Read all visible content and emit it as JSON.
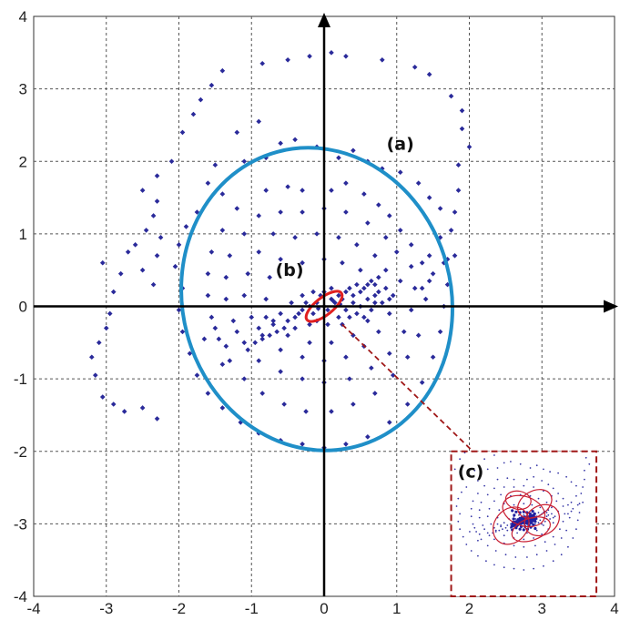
{
  "chart_data": {
    "type": "scatter",
    "title": "",
    "xlabel": "",
    "ylabel": "",
    "xlim": [
      -4,
      4
    ],
    "ylim": [
      -4,
      4
    ],
    "xticks": [
      -4,
      -3,
      -2,
      -1,
      0,
      1,
      2,
      3,
      4
    ],
    "yticks": [
      -4,
      -3,
      -2,
      -1,
      0,
      1,
      2,
      3,
      4
    ],
    "grid": true,
    "grid_style": "dashed",
    "annotations": [
      "(a)",
      "(b)",
      "(c)"
    ],
    "ellipses": {
      "a": {
        "label": "(a)",
        "center": [
          -0.1,
          0.1
        ],
        "rx": 1.85,
        "ry": 2.1,
        "rotation_deg": 15,
        "color": "#1f8fc8"
      },
      "b": {
        "label": "(b)",
        "center": [
          0.0,
          0.0
        ],
        "rx": 0.3,
        "ry": 0.12,
        "rotation_deg": 38,
        "color": "#e02020"
      }
    },
    "inset": {
      "label": "(c)",
      "x_range": [
        1.75,
        3.75
      ],
      "y_range": [
        -4.0,
        -2.0
      ],
      "border_color": "#a01818"
    },
    "point_color": "#2a2a9a",
    "series": [
      {
        "points": [
          [
            0.1,
            3.5
          ],
          [
            -0.2,
            3.45
          ],
          [
            0.3,
            3.45
          ],
          [
            -0.5,
            3.4
          ],
          [
            0.8,
            3.4
          ],
          [
            -0.85,
            3.35
          ],
          [
            1.25,
            3.3
          ],
          [
            -1.4,
            3.25
          ],
          [
            1.45,
            3.2
          ],
          [
            -1.55,
            3.05
          ],
          [
            1.75,
            2.9
          ],
          [
            -1.7,
            2.85
          ],
          [
            1.9,
            2.7
          ],
          [
            -1.8,
            2.65
          ],
          [
            1.9,
            2.45
          ],
          [
            -1.95,
            2.4
          ],
          [
            2.0,
            2.2
          ],
          [
            -2.1,
            2.0
          ],
          [
            1.85,
            1.95
          ],
          [
            -2.3,
            1.8
          ],
          [
            1.85,
            1.6
          ],
          [
            -2.5,
            1.6
          ],
          [
            1.8,
            1.3
          ],
          [
            -2.3,
            1.45
          ],
          [
            1.75,
            1.05
          ],
          [
            -2.35,
            1.25
          ],
          [
            -2.45,
            1.05
          ],
          [
            -2.25,
            0.95
          ],
          [
            -2.6,
            0.85
          ],
          [
            -2.3,
            0.7
          ],
          [
            -2.5,
            0.5
          ],
          [
            -2.35,
            0.3
          ],
          [
            -2.8,
            0.45
          ],
          [
            -2.9,
            0.2
          ],
          [
            -2.95,
            -0.1
          ],
          [
            -3.0,
            -0.3
          ],
          [
            -3.1,
            -0.5
          ],
          [
            -3.2,
            -0.7
          ],
          [
            -3.15,
            -0.95
          ],
          [
            -3.05,
            -1.25
          ],
          [
            -2.9,
            -1.35
          ],
          [
            -2.75,
            -1.45
          ],
          [
            -2.5,
            -1.4
          ],
          [
            -2.3,
            -1.55
          ],
          [
            -3.05,
            0.6
          ],
          [
            -2.7,
            0.75
          ],
          [
            -1.2,
            2.4
          ],
          [
            -0.9,
            2.55
          ],
          [
            -0.6,
            2.25
          ],
          [
            -0.4,
            2.3
          ],
          [
            -1.5,
            1.95
          ],
          [
            -1.1,
            2.0
          ],
          [
            -0.8,
            2.05
          ],
          [
            -0.1,
            2.2
          ],
          [
            0.2,
            2.05
          ],
          [
            0.4,
            2.15
          ],
          [
            0.6,
            2.0
          ],
          [
            0.8,
            1.9
          ],
          [
            1.05,
            1.85
          ],
          [
            1.3,
            1.7
          ],
          [
            1.45,
            1.5
          ],
          [
            1.6,
            1.35
          ],
          [
            -1.6,
            1.7
          ],
          [
            -1.4,
            1.55
          ],
          [
            -1.75,
            1.3
          ],
          [
            -1.9,
            1.1
          ],
          [
            -2.0,
            0.85
          ],
          [
            -2.05,
            0.55
          ],
          [
            -1.95,
            0.25
          ],
          [
            -2.0,
            -0.05
          ],
          [
            -1.95,
            -0.35
          ],
          [
            -1.85,
            -0.65
          ],
          [
            -1.75,
            -0.95
          ],
          [
            -1.6,
            -1.2
          ],
          [
            -1.4,
            -1.4
          ],
          [
            -1.15,
            -1.6
          ],
          [
            -0.9,
            -1.75
          ],
          [
            -0.6,
            -1.85
          ],
          [
            -0.3,
            -1.9
          ],
          [
            0.0,
            -1.95
          ],
          [
            0.3,
            -1.9
          ],
          [
            0.6,
            -1.8
          ],
          [
            0.9,
            -1.6
          ],
          [
            1.15,
            -1.35
          ],
          [
            1.35,
            -1.05
          ],
          [
            1.5,
            -0.7
          ],
          [
            1.6,
            -0.35
          ],
          [
            1.65,
            0.0
          ],
          [
            1.7,
            0.3
          ],
          [
            1.7,
            0.65
          ],
          [
            1.6,
            0.95
          ],
          [
            -0.8,
            1.6
          ],
          [
            -0.5,
            1.65
          ],
          [
            -0.3,
            1.6
          ],
          [
            0.1,
            1.6
          ],
          [
            0.3,
            1.7
          ],
          [
            0.55,
            1.55
          ],
          [
            0.75,
            1.4
          ],
          [
            0.9,
            1.25
          ],
          [
            1.05,
            1.05
          ],
          [
            1.2,
            0.85
          ],
          [
            1.35,
            0.6
          ],
          [
            1.45,
            0.35
          ],
          [
            -1.2,
            1.35
          ],
          [
            -1.4,
            1.05
          ],
          [
            -1.55,
            0.75
          ],
          [
            -1.6,
            0.45
          ],
          [
            -1.6,
            0.15
          ],
          [
            -1.55,
            -0.15
          ],
          [
            -1.45,
            -0.45
          ],
          [
            -1.3,
            -0.75
          ],
          [
            -1.1,
            -1.0
          ],
          [
            -0.85,
            -1.2
          ],
          [
            -0.55,
            -1.35
          ],
          [
            -0.25,
            -1.45
          ],
          [
            0.1,
            -1.45
          ],
          [
            0.4,
            -1.35
          ],
          [
            0.7,
            -1.2
          ],
          [
            0.95,
            -0.95
          ],
          [
            1.15,
            -0.7
          ],
          [
            1.3,
            -0.4
          ],
          [
            -0.9,
            1.25
          ],
          [
            -0.6,
            1.3
          ],
          [
            -0.3,
            1.3
          ],
          [
            0.0,
            1.35
          ],
          [
            0.3,
            1.3
          ],
          [
            0.6,
            1.15
          ],
          [
            0.85,
            0.95
          ],
          [
            1.0,
            0.75
          ],
          [
            -1.1,
            1.0
          ],
          [
            -1.3,
            0.7
          ],
          [
            -1.35,
            0.4
          ],
          [
            -1.35,
            0.1
          ],
          [
            -1.25,
            -0.2
          ],
          [
            -1.1,
            -0.5
          ],
          [
            -0.9,
            -0.75
          ],
          [
            -0.6,
            -0.9
          ],
          [
            -0.3,
            -1.0
          ],
          [
            0.0,
            -1.05
          ],
          [
            0.35,
            -1.0
          ],
          [
            0.65,
            -0.85
          ],
          [
            0.9,
            -0.65
          ],
          [
            1.1,
            -0.35
          ],
          [
            1.2,
            -0.05
          ],
          [
            1.25,
            0.25
          ],
          [
            -0.7,
            1.0
          ],
          [
            -0.4,
            0.95
          ],
          [
            -0.1,
            1.0
          ],
          [
            0.2,
            0.95
          ],
          [
            0.45,
            0.85
          ],
          [
            0.7,
            0.7
          ],
          [
            0.85,
            0.5
          ],
          [
            -0.9,
            0.75
          ],
          [
            -1.05,
            0.45
          ],
          [
            -1.1,
            0.15
          ],
          [
            -1.0,
            -0.15
          ],
          [
            -0.85,
            -0.4
          ],
          [
            -0.6,
            -0.6
          ],
          [
            -0.3,
            -0.7
          ],
          [
            0.0,
            -0.75
          ],
          [
            0.3,
            -0.7
          ],
          [
            0.55,
            -0.55
          ],
          [
            0.75,
            -0.35
          ],
          [
            0.9,
            -0.1
          ],
          [
            0.95,
            0.15
          ],
          [
            -0.6,
            0.65
          ],
          [
            -0.3,
            0.6
          ],
          [
            0.0,
            0.65
          ],
          [
            0.25,
            0.6
          ],
          [
            0.5,
            0.5
          ],
          [
            -0.75,
            0.4
          ],
          [
            -0.8,
            0.1
          ],
          [
            -0.7,
            -0.2
          ],
          [
            -0.5,
            -0.4
          ],
          [
            -0.2,
            -0.5
          ],
          [
            0.1,
            -0.5
          ],
          [
            0.4,
            -0.4
          ],
          [
            0.6,
            -0.2
          ],
          [
            0.7,
            0.05
          ],
          [
            0.7,
            0.3
          ],
          [
            1.35,
            0.25
          ],
          [
            1.5,
            0.45
          ],
          [
            1.65,
            0.6
          ],
          [
            1.8,
            0.7
          ],
          [
            1.45,
            0.7
          ],
          [
            1.2,
            0.55
          ],
          [
            1.05,
            0.35
          ],
          [
            1.4,
            0.1
          ],
          [
            -1.5,
            -0.3
          ],
          [
            -1.65,
            -0.45
          ],
          [
            -1.35,
            -0.55
          ],
          [
            -1.2,
            -0.35
          ],
          [
            -1.05,
            -0.6
          ],
          [
            -1.4,
            -0.8
          ],
          [
            0.1,
            0.1
          ],
          [
            0.2,
            0.15
          ],
          [
            -0.1,
            0.05
          ],
          [
            0.3,
            0.2
          ],
          [
            -0.2,
            0.0
          ],
          [
            0.05,
            -0.05
          ],
          [
            0.15,
            0.05
          ],
          [
            0.25,
            0.1
          ],
          [
            -0.05,
            0.15
          ],
          [
            0.35,
            0.25
          ],
          [
            -0.3,
            -0.05
          ],
          [
            0.4,
            0.15
          ],
          [
            -0.15,
            -0.1
          ],
          [
            0.45,
            0.3
          ],
          [
            0.5,
            0.2
          ],
          [
            -0.35,
            -0.1
          ],
          [
            -0.4,
            -0.15
          ],
          [
            0.55,
            0.25
          ],
          [
            0.6,
            0.3
          ],
          [
            -0.25,
            0.05
          ],
          [
            0.0,
            0.0
          ],
          [
            0.12,
            0.08
          ],
          [
            -0.08,
            -0.03
          ],
          [
            0.22,
            0.03
          ],
          [
            0.3,
            -0.05
          ],
          [
            0.4,
            0.05
          ],
          [
            0.5,
            0.0
          ],
          [
            0.6,
            0.1
          ],
          [
            0.7,
            0.15
          ],
          [
            0.8,
            0.05
          ],
          [
            -0.5,
            -0.2
          ],
          [
            -0.6,
            -0.1
          ],
          [
            -0.7,
            -0.25
          ],
          [
            -0.8,
            -0.15
          ],
          [
            -0.9,
            -0.3
          ],
          [
            -0.45,
            0.05
          ],
          [
            -0.55,
            -0.3
          ],
          [
            0.65,
            -0.05
          ],
          [
            0.75,
            0.2
          ],
          [
            0.85,
            0.25
          ],
          [
            0.9,
            0.1
          ],
          [
            -0.65,
            -0.35
          ],
          [
            -0.75,
            -0.4
          ],
          [
            0.2,
            -0.15
          ],
          [
            -0.1,
            -0.2
          ],
          [
            0.35,
            -0.15
          ],
          [
            -0.2,
            -0.25
          ],
          [
            0.1,
            0.25
          ],
          [
            -0.3,
            0.15
          ],
          [
            0.45,
            -0.1
          ],
          [
            0.55,
            -0.15
          ],
          [
            -0.4,
            -0.3
          ],
          [
            0.0,
            0.2
          ],
          [
            0.05,
            -0.25
          ],
          [
            0.25,
            -0.25
          ],
          [
            -0.15,
            0.2
          ],
          [
            0.65,
            0.35
          ],
          [
            0.75,
            0.4
          ],
          [
            -0.85,
            -0.45
          ],
          [
            -0.95,
            -0.5
          ]
        ]
      }
    ]
  }
}
